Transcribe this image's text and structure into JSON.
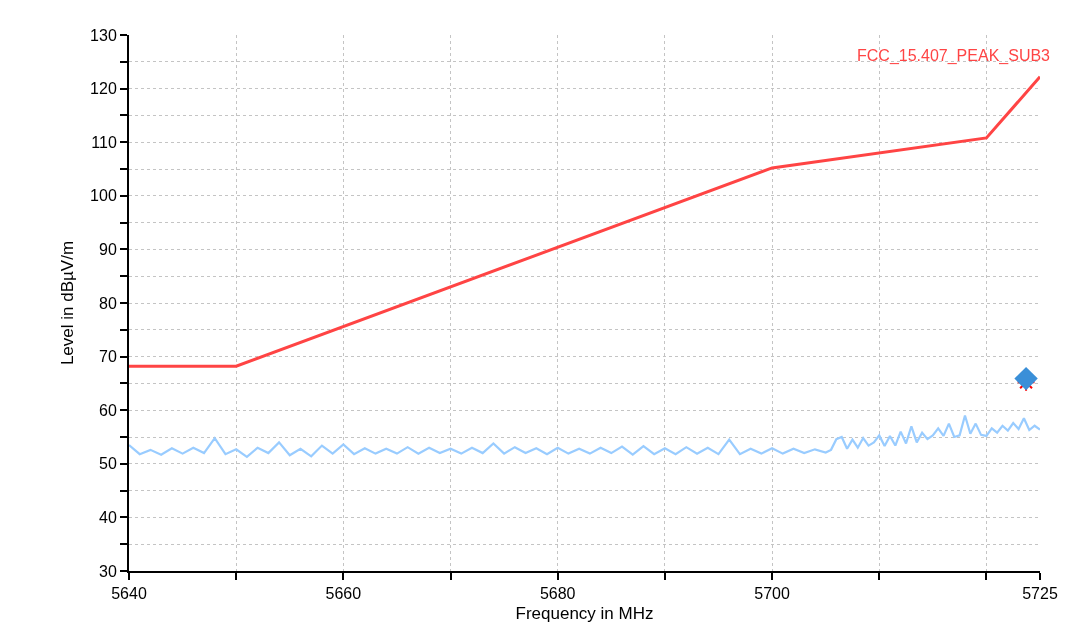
{
  "chart_data": {
    "type": "line",
    "xlabel": "Frequency in MHz",
    "ylabel": "Level in dBµV/m",
    "xlim": [
      5640,
      5725
    ],
    "ylim": [
      30,
      130
    ],
    "xticks": [
      5640,
      {
        "value": 5650,
        "label": null
      },
      5660,
      {
        "value": 5670,
        "label": null
      },
      5680,
      {
        "value": 5690,
        "label": null
      },
      5700,
      {
        "value": 5710,
        "label": null
      },
      {
        "value": 5720,
        "label": null
      },
      5725
    ],
    "yticks": [
      30,
      {
        "value": 35,
        "label": null
      },
      40,
      {
        "value": 45,
        "label": null
      },
      50,
      {
        "value": 55,
        "label": null
      },
      60,
      {
        "value": 65,
        "label": null
      },
      70,
      {
        "value": 75,
        "label": null
      },
      80,
      {
        "value": 85,
        "label": null
      },
      90,
      {
        "value": 95,
        "label": null
      },
      100,
      {
        "value": 105,
        "label": null
      },
      110,
      {
        "value": 115,
        "label": null
      },
      120,
      {
        "value": 125,
        "label": null
      },
      130
    ],
    "grid": true,
    "legend": false,
    "line_style": "solid",
    "series": [
      {
        "name": "FCC_15.407_PEAK_SUB3",
        "color": "#ff4444",
        "x": [
          5640,
          5650,
          5700,
          5720,
          5725
        ],
        "values": [
          68.2,
          68.2,
          105.2,
          110.8,
          122.2
        ]
      },
      {
        "color": "#99ccff",
        "x": [
          5640,
          5641,
          5642,
          5643,
          5644,
          5645,
          5646,
          5647,
          5648,
          5649,
          5650,
          5651,
          5652,
          5653,
          5654,
          5655,
          5656,
          5657,
          5658,
          5659,
          5660,
          5661,
          5662,
          5663,
          5664,
          5665,
          5666,
          5667,
          5668,
          5669,
          5670,
          5671,
          5672,
          5673,
          5674,
          5675,
          5676,
          5677,
          5678,
          5679,
          5680,
          5681,
          5682,
          5683,
          5684,
          5685,
          5686,
          5687,
          5688,
          5689,
          5690,
          5691,
          5692,
          5693,
          5694,
          5695,
          5696,
          5697,
          5698,
          5699,
          5700,
          5701,
          5702,
          5703,
          5704,
          5705,
          5705.5,
          5706,
          5706.5,
          5707,
          5707.5,
          5708,
          5708.5,
          5709,
          5709.5,
          5710,
          5710.5,
          5711,
          5711.5,
          5712,
          5712.5,
          5713,
          5713.5,
          5714,
          5714.5,
          5715,
          5715.5,
          5716,
          5716.5,
          5717,
          5717.5,
          5718,
          5718.5,
          5719,
          5719.5,
          5720,
          5720.5,
          5721,
          5721.5,
          5722,
          5722.5,
          5723,
          5723.5,
          5724,
          5724.5,
          5725
        ],
        "values": [
          53.5,
          51.8,
          52.6,
          51.7,
          52.9,
          51.9,
          53.0,
          52.0,
          54.8,
          51.8,
          52.7,
          51.3,
          53.0,
          52.0,
          54.0,
          51.6,
          52.8,
          51.4,
          53.4,
          51.9,
          53.6,
          51.8,
          52.9,
          51.9,
          52.8,
          51.9,
          53.1,
          51.9,
          53.0,
          52.0,
          52.8,
          51.9,
          53.0,
          52.0,
          53.8,
          51.9,
          53.1,
          52.0,
          52.9,
          51.8,
          53.0,
          51.9,
          52.8,
          51.9,
          53.0,
          52.0,
          53.2,
          51.7,
          53.3,
          51.8,
          52.9,
          51.8,
          53.1,
          51.9,
          53.0,
          51.8,
          54.5,
          51.8,
          52.8,
          51.9,
          52.9,
          51.9,
          52.8,
          52.0,
          52.7,
          52.1,
          52.6,
          54.6,
          55.0,
          52.8,
          54.5,
          53.0,
          54.8,
          53.4,
          54.0,
          55.3,
          53.3,
          55.2,
          53.4,
          56.0,
          53.8,
          57.0,
          54.0,
          55.8,
          54.6,
          55.3,
          56.6,
          55.2,
          57.5,
          55.0,
          55.3,
          59.0,
          55.6,
          57.5,
          55.4,
          55.2,
          56.6,
          55.8,
          57.1,
          56.2,
          57.6,
          56.5,
          58.5,
          56.3,
          57.1,
          56.4
        ]
      },
      {
        "type": "scatter",
        "color": "#ff0000",
        "marker": "cross",
        "x": [
          5723.7
        ],
        "values": [
          65.2
        ]
      },
      {
        "type": "scatter",
        "color": "#3a8fd8",
        "marker": "diamond",
        "x": [
          5723.7
        ],
        "values": [
          65.9
        ]
      }
    ]
  }
}
